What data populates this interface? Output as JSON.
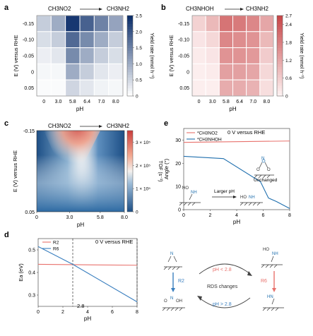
{
  "panels": {
    "a": {
      "letter": "a",
      "reaction_left": "CH3NO2",
      "reaction_right": "CH3NH2",
      "colorbar_label": "Yield rate",
      "colorbar_unit": "(mmol h⁻¹)",
      "colorbar_ticks": [
        "0",
        "0.5",
        "1.0",
        "1.5",
        "2.0",
        "2.5"
      ]
    },
    "b": {
      "letter": "b",
      "reaction_left": "CH3NHOH",
      "reaction_right": "CH3NH2",
      "colorbar_label": "Yield rate",
      "colorbar_unit": "(mmol h⁻¹)",
      "colorbar_ticks": [
        "0",
        "0.6",
        "1.2",
        "1.8",
        "2.4",
        "2.7"
      ]
    },
    "c": {
      "letter": "c",
      "reaction_left": "CH3NO2",
      "reaction_right": "CH3NH2",
      "colorbar_label": "TOF",
      "colorbar_unit": "(s⁻¹)",
      "colorbar_ticks": [
        "0",
        "1 × 10⁵",
        "2 × 10⁵",
        "3 × 10⁵"
      ]
    },
    "d": {
      "letter": "d",
      "annotation_value": "2.8",
      "annotation": "0 V versus RHE"
    },
    "e": {
      "letter": "e",
      "annotation": "0 V versus RHE",
      "unchanged": "Unchanged",
      "larger_ph": "Larger pH"
    }
  },
  "scheme": {
    "r2": "R2",
    "r6": "R6",
    "ph_low": "pH < 2.8",
    "ph_high": "pH > 2.8",
    "rds": "RDS changes"
  },
  "chart_data": [
    {
      "panel": "a",
      "type": "heatmap",
      "xlabel": "pH",
      "ylabel": "E (V) versus RHE",
      "x_categories": [
        "0",
        "3.0",
        "5.8",
        "6.4",
        "7.0",
        "8.0"
      ],
      "y_categories": [
        "-0.15",
        "-0.10",
        "-0.05",
        "0",
        "0.05"
      ],
      "values": [
        [
          0.6,
          1.0,
          2.4,
          1.9,
          1.5,
          1.1
        ],
        [
          0.4,
          0.6,
          1.8,
          1.4,
          1.0,
          0.6
        ],
        [
          0.2,
          0.3,
          1.4,
          1.0,
          0.6,
          0.4
        ],
        [
          0.1,
          0.1,
          1.0,
          0.6,
          0.3,
          0.2
        ],
        [
          0.05,
          0.05,
          0.5,
          0.3,
          0.15,
          0.1
        ]
      ],
      "zlim": [
        0,
        2.5
      ],
      "colormap": [
        "#ffffff",
        "#0d2f6b"
      ]
    },
    {
      "panel": "b",
      "type": "heatmap",
      "xlabel": "pH",
      "ylabel": "E (V) versus RHE",
      "x_categories": [
        "0",
        "3.0",
        "5.8",
        "6.4",
        "7.0",
        "8.0"
      ],
      "y_categories": [
        "-0.15",
        "-0.10",
        "-0.05",
        "0",
        "0.05"
      ],
      "values": [
        [
          0.5,
          0.9,
          2.0,
          1.9,
          1.7,
          1.2
        ],
        [
          0.2,
          0.4,
          1.7,
          1.6,
          1.5,
          0.9
        ],
        [
          0.1,
          0.2,
          1.5,
          1.5,
          1.4,
          0.6
        ],
        [
          0.05,
          0.1,
          1.3,
          1.3,
          1.2,
          0.4
        ],
        [
          0.05,
          0.05,
          1.1,
          1.1,
          1.0,
          0.3
        ]
      ],
      "zlim": [
        0,
        2.7
      ],
      "colormap": [
        "#fdf1f1",
        "#c8484a"
      ]
    },
    {
      "panel": "c",
      "type": "heatmap",
      "xlabel": "pH",
      "ylabel": "E (V) versus RHE",
      "x_ticks": [
        "0",
        "3.0",
        "5.8",
        "8.0"
      ],
      "y_ticks": [
        "-0.15",
        "0.05"
      ],
      "xlim": [
        0,
        8
      ],
      "ylim": [
        -0.15,
        0.05
      ],
      "zlim": [
        0,
        350000
      ],
      "description": "continuous TOF map, peak near pH 5.8 at -0.15 V"
    },
    {
      "panel": "d",
      "type": "line",
      "xlabel": "pH",
      "ylabel": "Ea (eV)",
      "xlim": [
        0,
        8
      ],
      "ylim": [
        0.25,
        0.55
      ],
      "x_ticks": [
        "0",
        "2",
        "4",
        "6",
        "8"
      ],
      "y_ticks": [
        "0.3",
        "0.4",
        "0.5"
      ],
      "series": [
        {
          "name": "R2",
          "color": "#e8716c",
          "x": [
            0,
            8
          ],
          "y": [
            0.436,
            0.432
          ]
        },
        {
          "name": "R6",
          "color": "#3a7fbf",
          "x": [
            0,
            2.8,
            8
          ],
          "y": [
            0.515,
            0.436,
            0.27
          ]
        }
      ],
      "vlines": [
        2.8,
        8
      ]
    },
    {
      "panel": "e",
      "type": "line",
      "xlabel": "pH",
      "ylabel": "Angle (°)",
      "xlim": [
        0,
        8
      ],
      "ylim": [
        0,
        35
      ],
      "x_ticks": [
        "0",
        "2",
        "4",
        "6",
        "8"
      ],
      "y_ticks": [
        "0",
        "10",
        "20",
        "30"
      ],
      "series": [
        {
          "name": "*CH3NO2",
          "color": "#e8716c",
          "x": [
            0,
            8
          ],
          "y": [
            29,
            29.6
          ]
        },
        {
          "name": "*CH3NHOH",
          "color": "#1f6fae",
          "x": [
            0,
            3,
            5.8,
            6.4,
            7,
            8
          ],
          "y": [
            23,
            22,
            12,
            5,
            3.5,
            0.5
          ]
        }
      ]
    }
  ]
}
